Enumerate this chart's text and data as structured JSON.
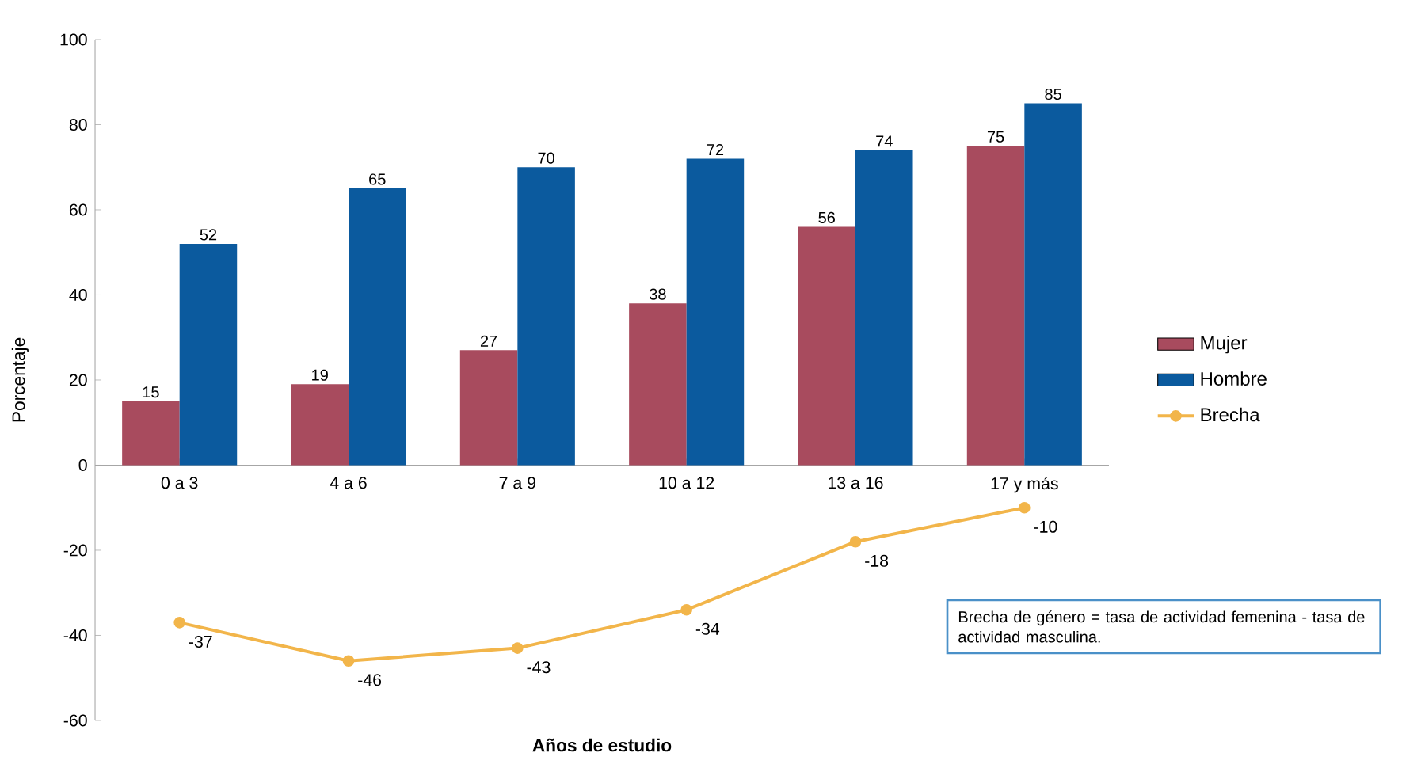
{
  "chart_data": {
    "type": "bar",
    "xlabel": "Años de estudio",
    "ylabel": "Porcentaje",
    "categories": [
      "0 a 3",
      "4 a 6",
      "7 a 9",
      "10 a 12",
      "13 a 16",
      "17 y más"
    ],
    "series": [
      {
        "name": "Mujer",
        "color": "#a84b5e",
        "values": [
          15,
          19,
          27,
          38,
          56,
          75
        ]
      },
      {
        "name": "Hombre",
        "color": "#0b5a9e",
        "values": [
          52,
          65,
          70,
          72,
          74,
          85
        ]
      },
      {
        "name": "Brecha",
        "type": "line",
        "color": "#f2b54a",
        "marker": "circle",
        "values": [
          -37,
          -46,
          -43,
          -34,
          -18,
          -10
        ]
      }
    ],
    "ylim": [
      -60,
      100
    ],
    "yticks": [
      -60,
      -40,
      -20,
      0,
      20,
      40,
      60,
      80,
      100
    ],
    "data_labels": true,
    "legend": "right",
    "annotations": [
      "Brecha de género = tasa de actividad femenina - tasa de actividad masculina."
    ]
  }
}
